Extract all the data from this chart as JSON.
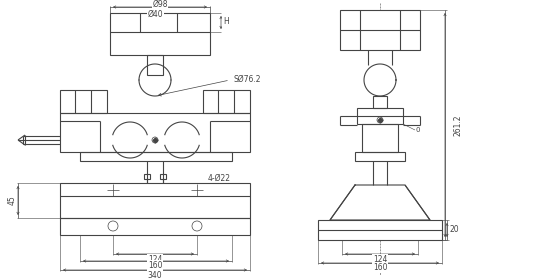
{
  "bg_color": "#ffffff",
  "line_color": "#444444",
  "dim_color": "#444444",
  "fig_width": 5.44,
  "fig_height": 2.79,
  "dpi": 100,
  "annotations": {
    "phi98": "Ø98",
    "phi40": "Ø40",
    "H": "H",
    "s_phi76": "SØ76.2",
    "dim_45": "45",
    "dim_4phi22": "4-Ø22",
    "dim_124_left": "124",
    "dim_160_left": "160",
    "dim_340": "340",
    "dim_261": "261.2",
    "dim_124_right": "124",
    "dim_160_right": "160",
    "dim_20": "20",
    "dim_0": "0"
  }
}
